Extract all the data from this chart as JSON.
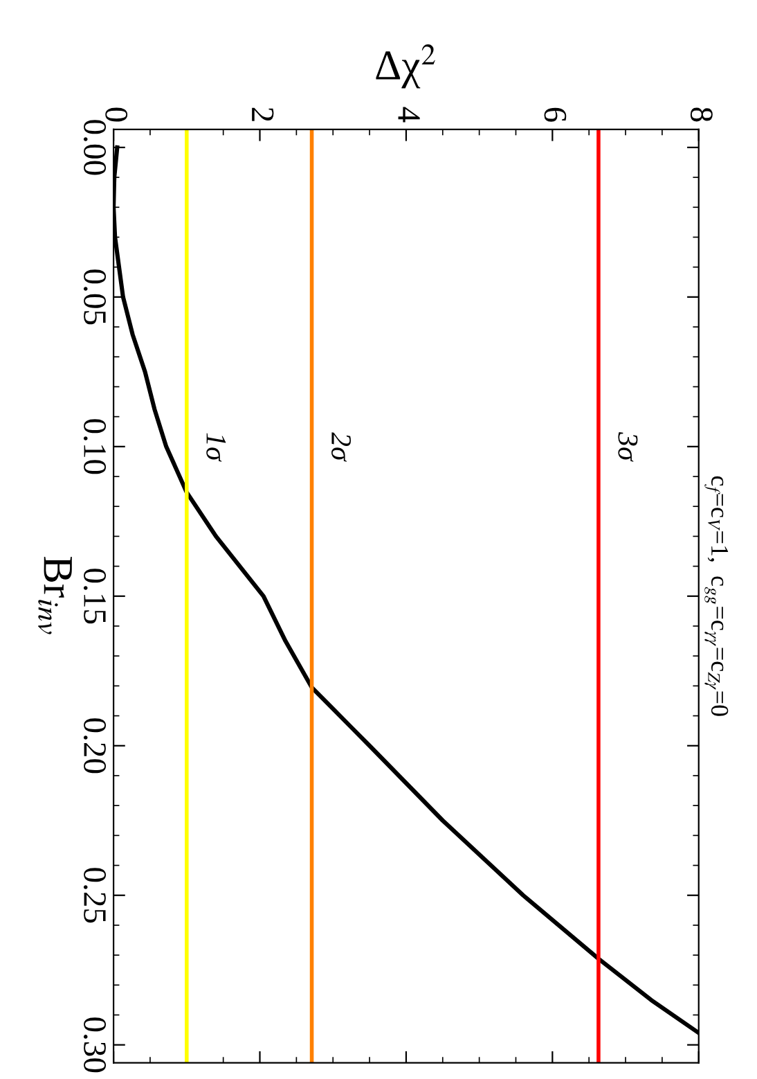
{
  "chart_data": {
    "type": "line",
    "xlabel": "Δχ$^{2}$",
    "ylabel": "Br$_{inv}$",
    "annotations": [
      "c$_{f}$=c$_{V}$=1,  c$_{gg}$=c$_{γγ}$=c$_{Zγ}$=0"
    ],
    "series": [
      {
        "color": "#000000",
        "x": [
          0.05,
          0.01,
          0.0,
          0.02,
          0.13,
          0.26,
          0.43,
          0.56,
          0.72,
          1.0,
          1.4,
          2.05,
          2.35,
          2.71,
          3.5,
          4.0,
          4.5,
          5.05,
          5.6,
          6.63,
          7.35,
          8.0
        ],
        "values": [
          0.0,
          0.01,
          0.02,
          0.03,
          0.05,
          0.0625,
          0.075,
          0.0875,
          0.1,
          0.1153,
          0.13,
          0.15,
          0.165,
          0.1805,
          0.2,
          0.2125,
          0.225,
          0.2375,
          0.25,
          0.2712,
          0.285,
          0.296
        ]
      }
    ],
    "ref_lines": [
      {
        "axis": "x",
        "value": 1.0,
        "label": "1σ",
        "color": "#ffff00"
      },
      {
        "axis": "x",
        "value": 2.71,
        "label": "2σ",
        "color": "#ff8000"
      },
      {
        "axis": "x",
        "value": 6.63,
        "label": "3σ",
        "color": "#ff0000"
      }
    ],
    "ylim": [
      0.306,
      -0.006
    ],
    "yticks": [
      {
        "value": 0.0,
        "label": "0.00"
      },
      {
        "value": 0.05,
        "label": "0.05"
      },
      {
        "value": 0.1,
        "label": "0.10"
      },
      {
        "value": 0.15,
        "label": "0.15"
      },
      {
        "value": 0.2,
        "label": "0.20"
      },
      {
        "value": 0.25,
        "label": "0.25"
      },
      {
        "value": 0.3,
        "label": "0.30"
      }
    ],
    "xlim": [
      0,
      8
    ],
    "xticks": [
      0,
      2,
      4,
      6,
      8
    ],
    "grid": false,
    "legend": false,
    "marker": "none",
    "line_style": "solid"
  }
}
